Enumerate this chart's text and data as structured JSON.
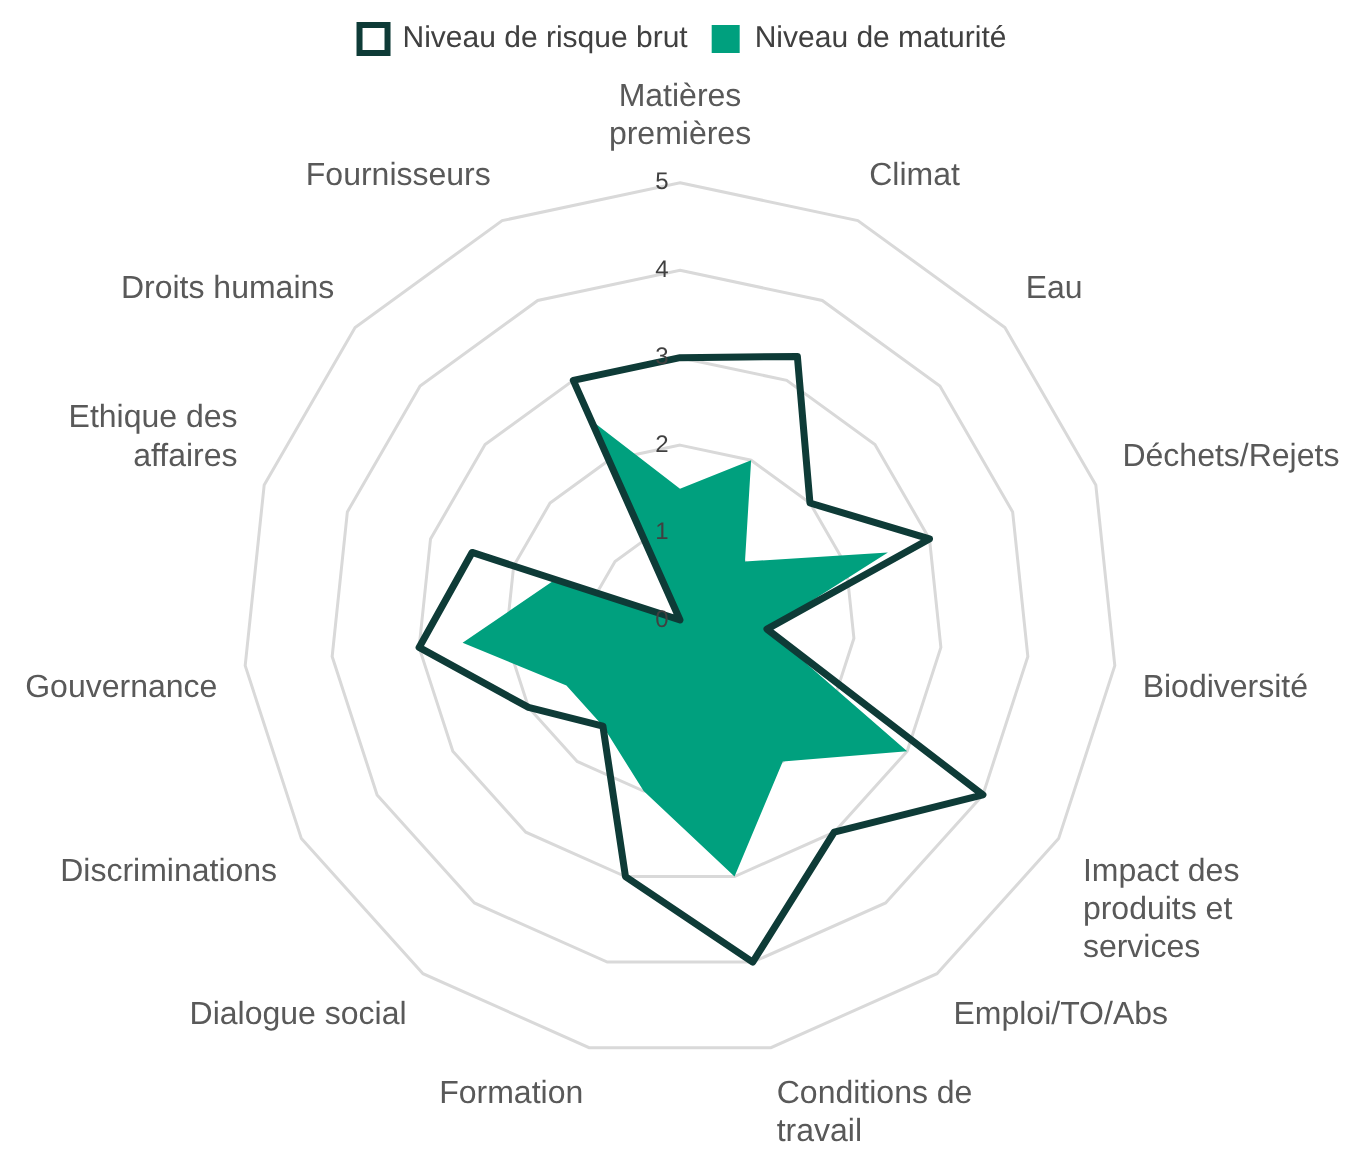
{
  "chart_data": {
    "type": "radar",
    "categories": [
      "Matières premières",
      "Climat",
      "Eau",
      "Déchets/Rejets",
      "Biodiversité",
      "Impact des produits et services",
      "Emploi/TO/Abs",
      "Conditions de travail",
      "Formation",
      "Dialogue social",
      "Discriminations",
      "Gouvernance",
      "Ethique des affaires",
      "Droits humains",
      "Fournisseurs"
    ],
    "series": [
      {
        "name": "Niveau de risque brut",
        "color": "#0e3b37",
        "values": [
          3,
          3.3,
          2,
          3,
          1,
          4,
          3,
          4,
          3,
          1.5,
          2,
          3,
          2.5,
          0,
          3
        ]
      },
      {
        "name": "Niveau de maturité",
        "color": "#00a07e",
        "type": "area",
        "values": [
          1.5,
          2,
          1,
          2.5,
          1,
          3,
          2,
          3,
          2,
          1.5,
          1.5,
          2.5,
          1.5,
          0,
          2.5
        ]
      }
    ],
    "ylim": [
      0,
      5
    ],
    "yticks": [
      0,
      1,
      2,
      3,
      4,
      5
    ],
    "grid": true,
    "legend": "top",
    "marker": "none"
  }
}
